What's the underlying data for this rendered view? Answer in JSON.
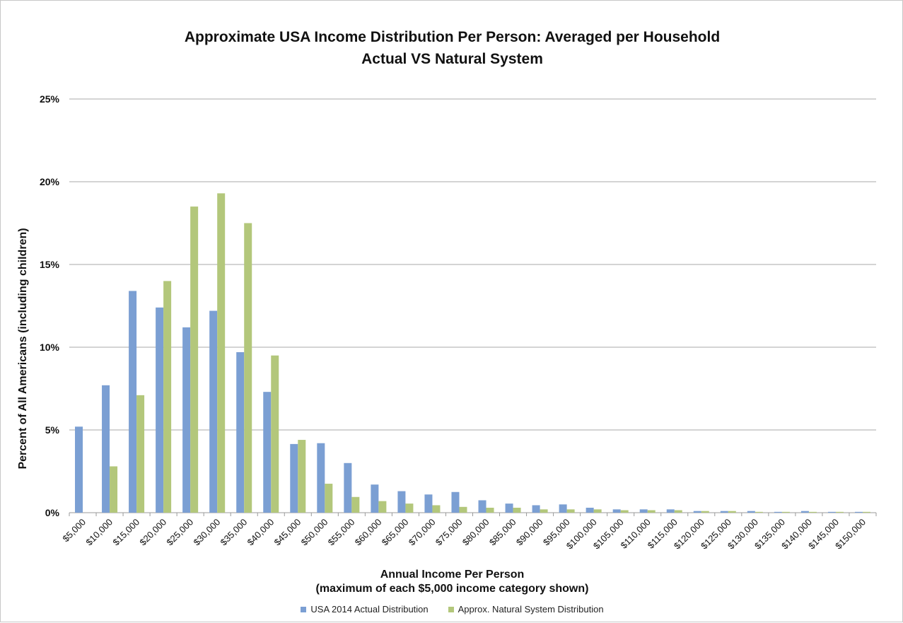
{
  "chart_data": {
    "type": "bar",
    "title": "Approximate USA Income Distribution Per Person: Averaged per Household",
    "subtitle": "Actual VS  Natural System",
    "xlabel": "Annual Income Per Person",
    "xlabel_sub": "(maximum of each $5,000 income category shown)",
    "ylabel": "Percent of All Americans (including children)",
    "ylim": [
      0,
      25
    ],
    "yticks": [
      "0%",
      "5%",
      "10%",
      "15%",
      "20%",
      "25%"
    ],
    "grid": true,
    "legend_position": "bottom",
    "categories": [
      "$5,000",
      "$10,000",
      "$15,000",
      "$20,000",
      "$25,000",
      "$30,000",
      "$35,000",
      "$40,000",
      "$45,000",
      "$50,000",
      "$55,000",
      "$60,000",
      "$65,000",
      "$70,000",
      "$75,000",
      "$80,000",
      "$85,000",
      "$90,000",
      "$95,000",
      "$100,000",
      "$105,000",
      "$110,000",
      "$115,000",
      "$120,000",
      "$125,000",
      "$130,000",
      "$135,000",
      "$140,000",
      "$145,000",
      "$150,000"
    ],
    "series": [
      {
        "name": "USA 2014 Actual Distribution",
        "color": "#7b9fd3",
        "values": [
          5.2,
          7.7,
          13.4,
          12.4,
          11.2,
          12.2,
          9.7,
          7.3,
          4.15,
          4.2,
          3.0,
          1.7,
          1.3,
          1.1,
          1.25,
          0.75,
          0.55,
          0.45,
          0.5,
          0.3,
          0.2,
          0.2,
          0.2,
          0.1,
          0.1,
          0.1,
          0.05,
          0.1,
          0.05,
          0.05
        ]
      },
      {
        "name": "Approx. Natural System Distribution",
        "color": "#b3c77b",
        "values": [
          0,
          2.8,
          7.1,
          14.0,
          18.5,
          19.3,
          17.5,
          9.5,
          4.4,
          1.75,
          0.95,
          0.7,
          0.55,
          0.45,
          0.35,
          0.3,
          0.3,
          0.2,
          0.2,
          0.2,
          0.15,
          0.15,
          0.15,
          0.1,
          0.1,
          0.05,
          0.05,
          0.05,
          0.05,
          0.05
        ]
      }
    ]
  }
}
